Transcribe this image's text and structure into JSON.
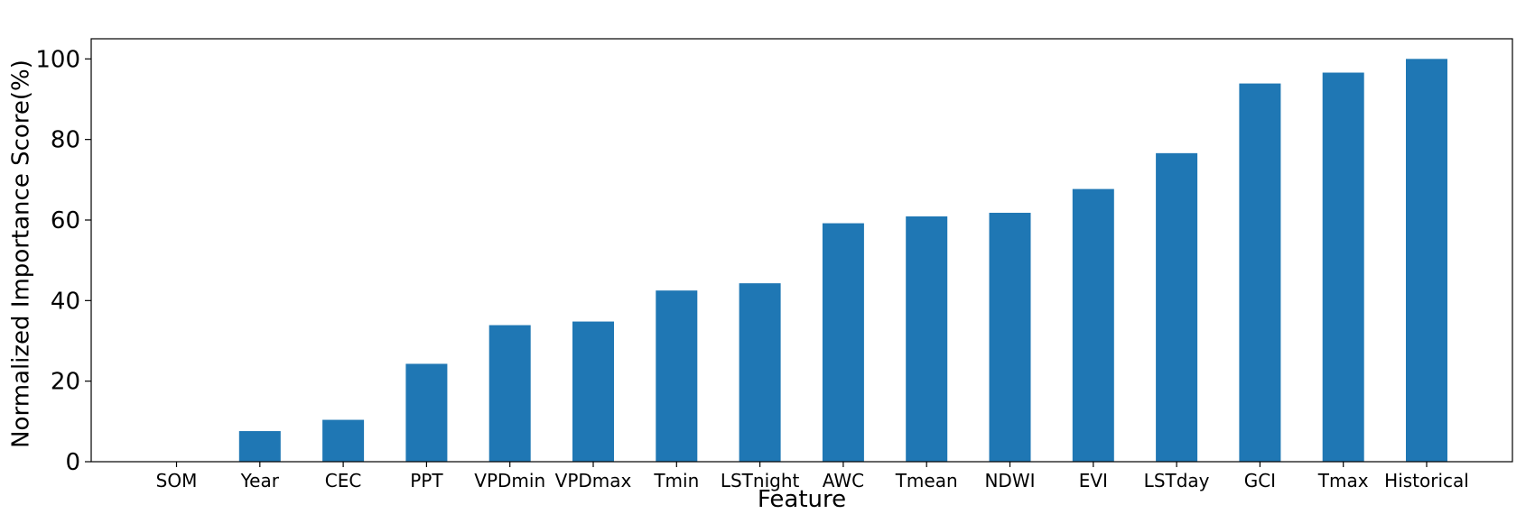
{
  "chart_data": {
    "type": "bar",
    "title": "",
    "xlabel": "Feature",
    "ylabel": "Normalized Importance Score(%)",
    "ylim": [
      0,
      105
    ],
    "yticks": [
      0,
      20,
      40,
      60,
      80,
      100
    ],
    "grid": false,
    "legend": "none",
    "categories": [
      "SOM",
      "Year",
      "CEC",
      "PPT",
      "VPDmin",
      "VPDmax",
      "Tmin",
      "LSTnight",
      "AWC",
      "Tmean",
      "NDWI",
      "EVI",
      "LSTday",
      "GCI",
      "Tmax",
      "Historical"
    ],
    "values": [
      0,
      7.6,
      10.4,
      24.3,
      33.9,
      34.8,
      42.5,
      44.3,
      59.2,
      60.9,
      61.8,
      67.7,
      76.6,
      93.9,
      96.6,
      100
    ],
    "bar_color": "#1f77b4"
  }
}
